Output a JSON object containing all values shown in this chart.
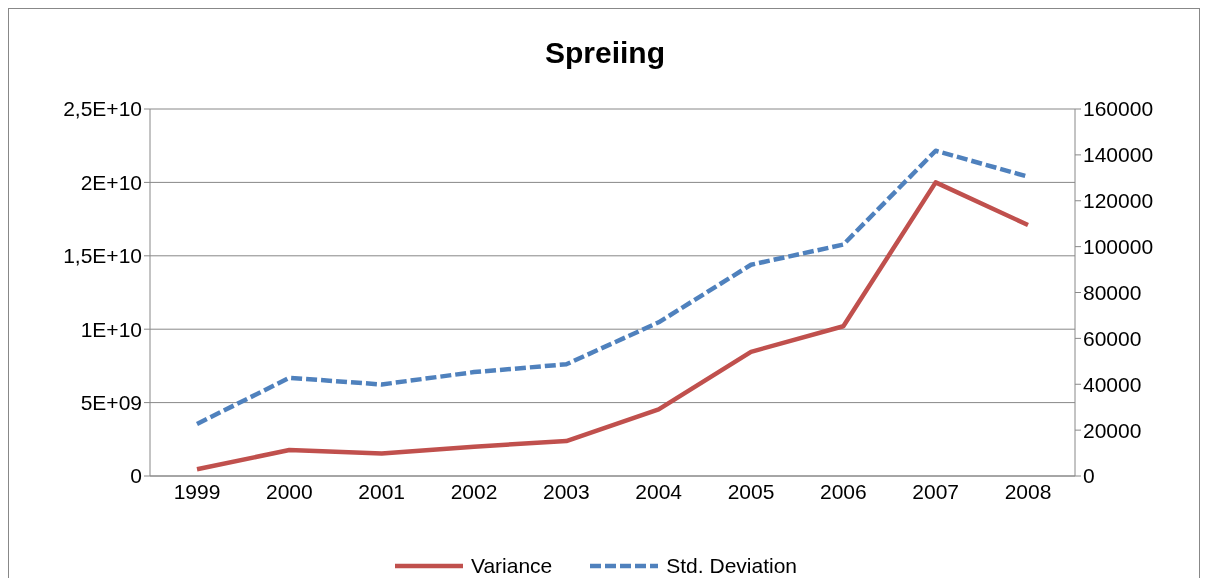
{
  "chart_data": {
    "type": "line",
    "title": "Spreiing",
    "categories": [
      "1999",
      "2000",
      "2001",
      "2002",
      "2003",
      "2004",
      "2005",
      "2006",
      "2007",
      "2008"
    ],
    "series": [
      {
        "name": "Variance",
        "color": "#c0504d",
        "line_style": "solid",
        "values": [
          460000000,
          1770000000,
          1540000000,
          2000000000,
          2380000000,
          4540000000,
          8460000000,
          10200000000,
          20000000000,
          17100000000
        ]
      },
      {
        "name": "Std. Deviation",
        "color": "#4f81bd",
        "line_style": "dashed",
        "axis": "y2",
        "values": [
          22700,
          42800,
          39900,
          45300,
          48700,
          67000,
          92100,
          100900,
          141800,
          130500
        ]
      }
    ],
    "ylim": [
      0,
      25000000000
    ],
    "yticks": [
      {
        "value": 0,
        "label": "0"
      },
      {
        "value": 5000000000,
        "label": "5E+09"
      },
      {
        "value": 10000000000,
        "label": "1E+10"
      },
      {
        "value": 15000000000,
        "label": "1,5E+10"
      },
      {
        "value": 20000000000,
        "label": "2E+10"
      },
      {
        "value": 25000000000,
        "label": "2,5E+10"
      }
    ],
    "y2lim": [
      0,
      160000
    ],
    "y2ticks": [
      0,
      20000,
      40000,
      60000,
      80000,
      100000,
      120000,
      140000,
      160000
    ],
    "grid": "y",
    "legend": "bottom",
    "marker": "none"
  }
}
